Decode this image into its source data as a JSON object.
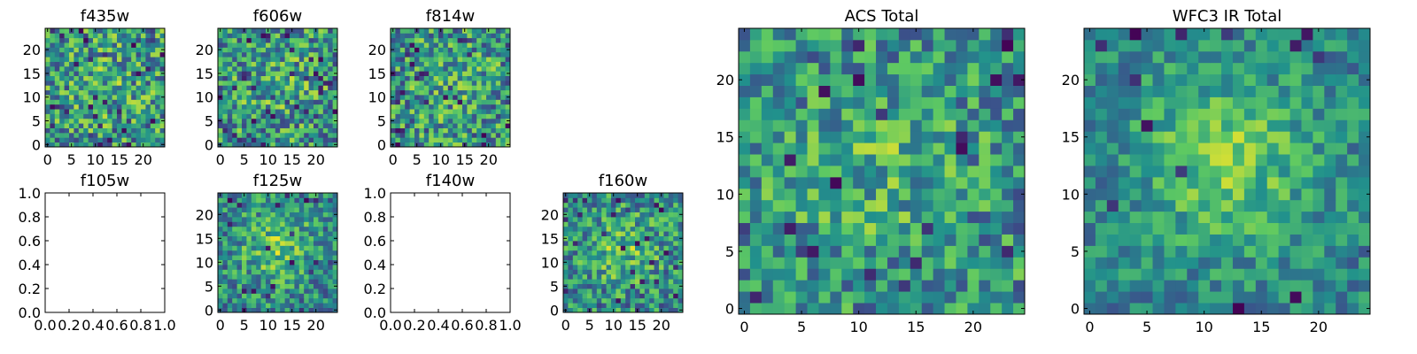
{
  "colormap": [
    "#440154",
    "#3b528b",
    "#21918c",
    "#5ec962",
    "#fde725"
  ],
  "chart_data": [
    {
      "type": "heatmap",
      "title": "f435w",
      "empty": false,
      "xlim": [
        -0.5,
        24.5
      ],
      "ylim": [
        -0.5,
        24.5
      ],
      "xticks": [
        0,
        5,
        10,
        15,
        20
      ],
      "yticks": [
        0,
        5,
        10,
        15,
        20
      ],
      "seed": 11,
      "signal": 0.15,
      "noise": 0.35,
      "lows": 0.04
    },
    {
      "type": "heatmap",
      "title": "f606w",
      "empty": false,
      "xlim": [
        -0.5,
        24.5
      ],
      "ylim": [
        -0.5,
        24.5
      ],
      "xticks": [
        0,
        5,
        10,
        15,
        20
      ],
      "yticks": [
        0,
        5,
        10,
        15,
        20
      ],
      "seed": 23,
      "signal": 0.2,
      "noise": 0.34,
      "lows": 0.05
    },
    {
      "type": "heatmap",
      "title": "f814w",
      "empty": false,
      "xlim": [
        -0.5,
        24.5
      ],
      "ylim": [
        -0.5,
        24.5
      ],
      "xticks": [
        0,
        5,
        10,
        15,
        20
      ],
      "yticks": [
        0,
        5,
        10,
        15,
        20
      ],
      "seed": 37,
      "signal": 0.2,
      "noise": 0.34,
      "lows": 0.05
    },
    {
      "type": "heatmap",
      "title": "f105w",
      "empty": true,
      "xlim": [
        0.0,
        1.0
      ],
      "ylim": [
        0.0,
        1.0
      ],
      "xticks": [
        "0.0",
        "0.2",
        "0.4",
        "0.6",
        "0.8",
        "1.0"
      ],
      "yticks": [
        "0.0",
        "0.2",
        "0.4",
        "0.6",
        "0.8",
        "1.0"
      ]
    },
    {
      "type": "heatmap",
      "title": "f125w",
      "empty": false,
      "xlim": [
        -0.5,
        24.5
      ],
      "ylim": [
        -0.5,
        24.5
      ],
      "xticks": [
        0,
        5,
        10,
        15,
        20
      ],
      "yticks": [
        0,
        5,
        10,
        15,
        20
      ],
      "seed": 53,
      "signal": 0.55,
      "noise": 0.28,
      "lows": 0.04
    },
    {
      "type": "heatmap",
      "title": "f140w",
      "empty": true,
      "xlim": [
        0.0,
        1.0
      ],
      "ylim": [
        0.0,
        1.0
      ],
      "xticks": [
        "0.0",
        "0.2",
        "0.4",
        "0.6",
        "0.8",
        "1.0"
      ],
      "yticks": [
        "0.0",
        "0.2",
        "0.4",
        "0.6",
        "0.8",
        "1.0"
      ]
    },
    {
      "type": "heatmap",
      "title": "f160w",
      "empty": false,
      "xlim": [
        -0.5,
        24.5
      ],
      "ylim": [
        -0.5,
        24.5
      ],
      "xticks": [
        0,
        5,
        10,
        15,
        20
      ],
      "yticks": [
        0,
        5,
        10,
        15,
        20
      ],
      "seed": 71,
      "signal": 0.45,
      "noise": 0.3,
      "lows": 0.04
    },
    {
      "type": "heatmap",
      "title": "ACS Total",
      "empty": false,
      "xlim": [
        -0.5,
        24.5
      ],
      "ylim": [
        -0.5,
        24.5
      ],
      "xticks": [
        0,
        5,
        10,
        15,
        20
      ],
      "yticks": [
        0,
        5,
        10,
        15,
        20
      ],
      "seed": 89,
      "signal": 0.3,
      "noise": 0.3,
      "lows": 0.03
    },
    {
      "type": "heatmap",
      "title": "WFC3 IR Total",
      "empty": false,
      "xlim": [
        -0.5,
        24.5
      ],
      "ylim": [
        -0.5,
        24.5
      ],
      "xticks": [
        0,
        5,
        10,
        15,
        20
      ],
      "yticks": [
        0,
        5,
        10,
        15,
        20
      ],
      "seed": 97,
      "signal": 0.7,
      "noise": 0.2,
      "lows": 0.02
    }
  ]
}
